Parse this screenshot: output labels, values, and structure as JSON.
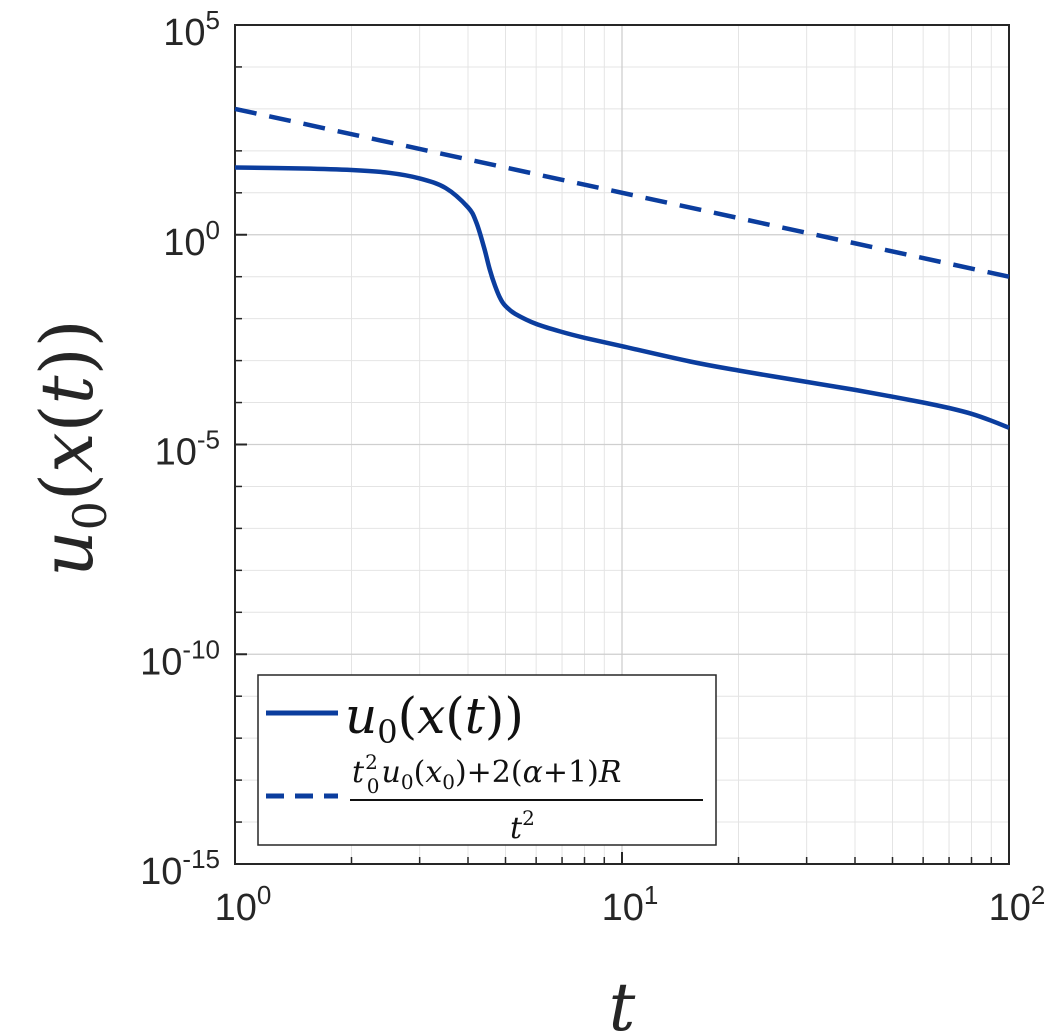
{
  "chart_data": {
    "type": "line",
    "x_scale": "log",
    "y_scale": "log",
    "xlim": [
      1,
      100
    ],
    "ylim": [
      1e-15,
      100000
    ],
    "grid": true,
    "minor_grid": true,
    "legend_position": "bottom-left",
    "xlabel": "t",
    "ylabel": "u0(x(t))",
    "x_ticks": [
      {
        "value": 1,
        "base": "10",
        "exp": "0"
      },
      {
        "value": 10,
        "base": "10",
        "exp": "1"
      },
      {
        "value": 100,
        "base": "10",
        "exp": "2"
      }
    ],
    "y_ticks": [
      {
        "value": 100000,
        "base": "10",
        "exp": "5"
      },
      {
        "value": 1,
        "base": "10",
        "exp": "0"
      },
      {
        "value": 1e-05,
        "base": "10",
        "exp": "-5"
      },
      {
        "value": 1e-10,
        "base": "10",
        "exp": "-10"
      },
      {
        "value": 1e-15,
        "base": "10",
        "exp": "-15"
      }
    ],
    "series": [
      {
        "name": "u0(x(t))",
        "color": "#0b3d9e",
        "style": "solid",
        "x": [
          1,
          1.5,
          2,
          2.5,
          3,
          3.5,
          4,
          4.2,
          4.4,
          4.55,
          4.7,
          4.85,
          5.0,
          5.3,
          6,
          7,
          8,
          10,
          15,
          20,
          30,
          40,
          50,
          60,
          70,
          80,
          90,
          100
        ],
        "y": [
          40,
          38,
          35,
          30,
          22,
          13,
          4.5,
          2.0,
          0.5,
          0.15,
          0.06,
          0.03,
          0.02,
          0.013,
          0.0075,
          0.0048,
          0.0035,
          0.0022,
          0.00095,
          0.00058,
          0.00031,
          0.0002,
          0.000138,
          0.0001,
          7.4e-05,
          5.4e-05,
          3.7e-05,
          2.5e-05
        ]
      },
      {
        "name": "t0^2 u0(x0)+2(α+1)R / t^2",
        "color": "#0b3d9e",
        "style": "dashed",
        "x": [
          1,
          100
        ],
        "y": [
          1000,
          0.1
        ]
      }
    ]
  },
  "legend": {
    "entries": [
      {
        "label": "u0(x(t))"
      },
      {
        "numerator": "t0^2 u0(x0)+2(α+1)R",
        "denominator": "t^2"
      }
    ]
  }
}
